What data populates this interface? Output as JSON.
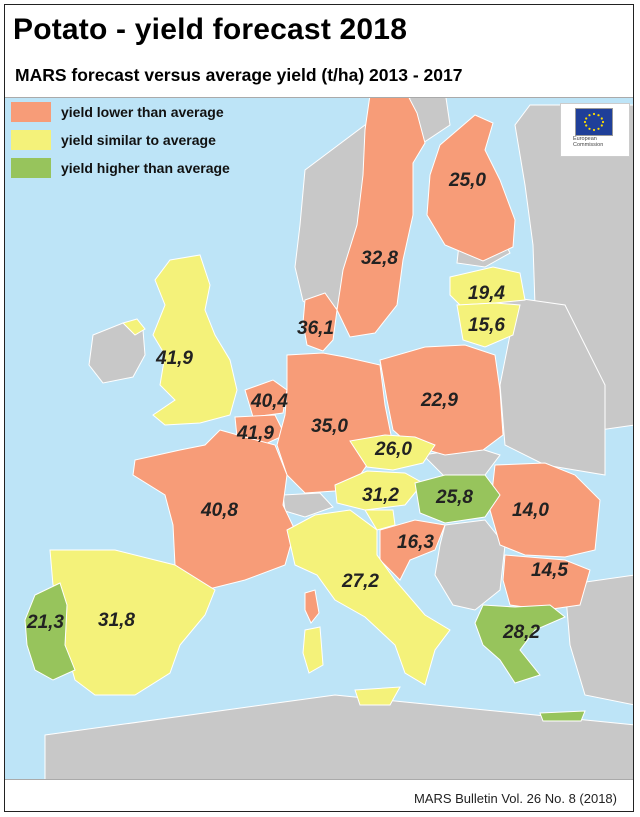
{
  "title": "Potato - yield forecast 2018",
  "subtitle": "MARS forecast versus average yield (t/ha) 2013 - 2017",
  "legend": [
    {
      "label": "yield lower than average",
      "color": "#f79c78"
    },
    {
      "label": "yield similar to average",
      "color": "#f4f27a"
    },
    {
      "label": "yield higher than average",
      "color": "#97c45c"
    }
  ],
  "logo": {
    "icon": "eu-flag-icon",
    "text_line1": "European",
    "text_line2": "Commission"
  },
  "regions": [
    {
      "id": "finland",
      "value": "25,0",
      "category": "lower"
    },
    {
      "id": "sweden",
      "value": "32,8",
      "category": "lower"
    },
    {
      "id": "latvia",
      "value": "19,4",
      "category": "similar"
    },
    {
      "id": "lithuania",
      "value": "15,6",
      "category": "similar"
    },
    {
      "id": "denmark",
      "value": "36,1",
      "category": "lower"
    },
    {
      "id": "united-kingdom",
      "value": "41,9",
      "category": "similar"
    },
    {
      "id": "netherlands",
      "value": "40,4",
      "category": "lower"
    },
    {
      "id": "belgium",
      "value": "41,9",
      "category": "lower"
    },
    {
      "id": "germany",
      "value": "35,0",
      "category": "lower"
    },
    {
      "id": "poland",
      "value": "22,9",
      "category": "lower"
    },
    {
      "id": "czechia",
      "value": "26,0",
      "category": "similar"
    },
    {
      "id": "austria",
      "value": "31,2",
      "category": "similar"
    },
    {
      "id": "hungary",
      "value": "25,8",
      "category": "higher"
    },
    {
      "id": "france",
      "value": "40,8",
      "category": "lower"
    },
    {
      "id": "croatia",
      "value": "16,3",
      "category": "lower"
    },
    {
      "id": "romania",
      "value": "14,0",
      "category": "lower"
    },
    {
      "id": "bulgaria",
      "value": "14,5",
      "category": "lower"
    },
    {
      "id": "italy",
      "value": "27,2",
      "category": "similar"
    },
    {
      "id": "portugal",
      "value": "21,3",
      "category": "higher"
    },
    {
      "id": "spain",
      "value": "31,8",
      "category": "similar"
    },
    {
      "id": "greece",
      "value": "28,2",
      "category": "higher"
    }
  ],
  "colors": {
    "sea": "#bde4f7",
    "no_data": "#c8c8c8",
    "lower": "#f79c78",
    "similar": "#f4f27a",
    "higher": "#97c45c"
  },
  "footer": "MARS Bulletin Vol. 26 No. 8 (2018)"
}
